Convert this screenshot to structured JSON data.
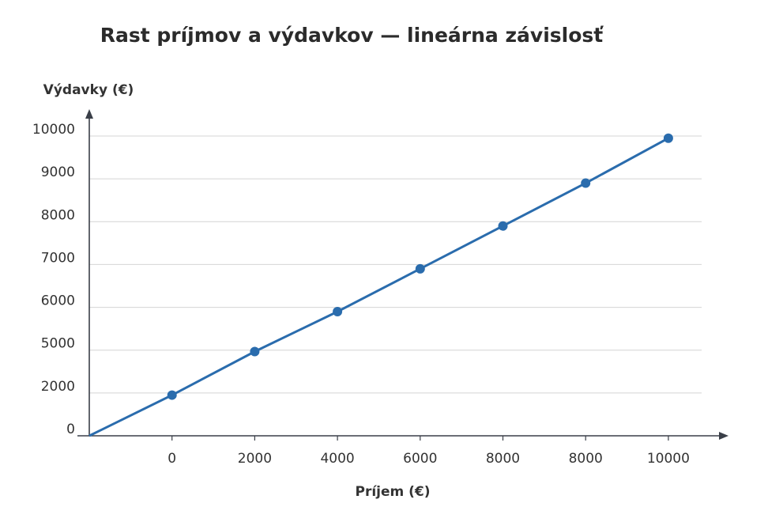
{
  "chart_data": {
    "type": "line",
    "title": "Rast príjmov a výdavkov — lineárna závislosť",
    "x_label": "Príjem (€)",
    "y_label": "Výdavky (€)",
    "categories": [
      null,
      "0",
      "2000",
      "4000",
      "6000",
      "8000",
      "8000",
      "10000"
    ],
    "values": [
      0,
      1900,
      4900,
      5900,
      6900,
      7900,
      8900,
      9950
    ],
    "color": "#2a6cad",
    "ylim": [
      0,
      10000
    ],
    "yticks": [
      0,
      2000,
      5000,
      6000,
      7000,
      8000,
      9000,
      10000
    ],
    "grid": true
  }
}
